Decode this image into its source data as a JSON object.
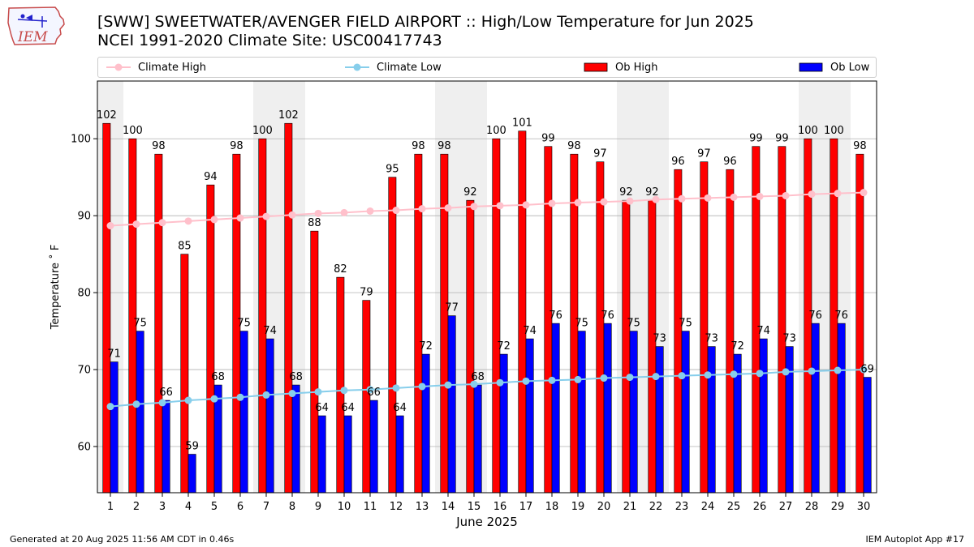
{
  "header": {
    "title_line1": "[SWW] SWEETWATER/AVENGER FIELD AIRPORT :: High/Low Temperature for Jun 2025",
    "title_line2": "NCEI 1991-2020 Climate Site: USC00417743",
    "logo_text": "IEM"
  },
  "legend": {
    "items": [
      {
        "label": "Climate High",
        "color": "#ffc0cb",
        "kind": "line"
      },
      {
        "label": "Climate Low",
        "color": "#87ceeb",
        "kind": "line"
      },
      {
        "label": "Ob High",
        "color": "#ff0000",
        "kind": "bar"
      },
      {
        "label": "Ob Low",
        "color": "#0000ff",
        "kind": "bar"
      }
    ],
    "placement": "top, above plot, horizontal"
  },
  "footer": {
    "left": "Generated at 20 Aug 2025 11:56 AM CDT in 0.46s",
    "right": "IEM Autoplot App #17"
  },
  "chart_data": {
    "type": "bar",
    "xlabel": "June 2025",
    "ylabel": "Temperature ˚ F",
    "ylim": [
      54,
      107.5
    ],
    "yticks": [
      60,
      70,
      80,
      90,
      100
    ],
    "grid": "horizontal",
    "x": [
      1,
      2,
      3,
      4,
      5,
      6,
      7,
      8,
      9,
      10,
      11,
      12,
      13,
      14,
      15,
      16,
      17,
      18,
      19,
      20,
      21,
      22,
      23,
      24,
      25,
      26,
      27,
      28,
      29,
      30
    ],
    "weekend_shading_days": [
      1,
      7,
      8,
      14,
      15,
      21,
      22,
      28,
      29
    ],
    "series": [
      {
        "name": "Ob High",
        "type": "bar",
        "color": "#ff0000",
        "values": [
          102,
          100,
          98,
          85,
          94,
          98,
          100,
          102,
          88,
          82,
          79,
          95,
          98,
          98,
          92,
          100,
          101,
          99,
          98,
          97,
          92,
          92,
          96,
          97,
          96,
          99,
          99,
          100,
          100,
          98
        ]
      },
      {
        "name": "Ob Low",
        "type": "bar",
        "color": "#0000ff",
        "values": [
          71,
          75,
          66,
          59,
          68,
          75,
          74,
          68,
          64,
          64,
          66,
          64,
          72,
          77,
          68,
          72,
          74,
          76,
          75,
          76,
          75,
          73,
          75,
          73,
          72,
          74,
          73,
          76,
          76,
          69
        ]
      },
      {
        "name": "Climate High",
        "type": "line",
        "color": "#ffc0cb",
        "values": [
          88.7,
          88.9,
          89.1,
          89.3,
          89.5,
          89.7,
          89.9,
          90.1,
          90.3,
          90.4,
          90.6,
          90.7,
          90.9,
          91.0,
          91.2,
          91.3,
          91.4,
          91.6,
          91.7,
          91.8,
          91.9,
          92.1,
          92.2,
          92.3,
          92.4,
          92.5,
          92.6,
          92.8,
          92.9,
          93.0
        ]
      },
      {
        "name": "Climate Low",
        "type": "line",
        "color": "#87ceeb",
        "values": [
          65.2,
          65.5,
          65.7,
          66.0,
          66.2,
          66.4,
          66.7,
          66.9,
          67.1,
          67.3,
          67.4,
          67.6,
          67.8,
          68.0,
          68.1,
          68.3,
          68.5,
          68.6,
          68.7,
          68.9,
          69.0,
          69.1,
          69.2,
          69.3,
          69.4,
          69.5,
          69.7,
          69.8,
          69.9,
          70.0
        ]
      }
    ],
    "bar_labels": {
      "high": [
        102,
        100,
        98,
        85,
        94,
        98,
        100,
        102,
        88,
        82,
        79,
        95,
        98,
        98,
        92,
        100,
        101,
        99,
        98,
        97,
        92,
        92,
        96,
        97,
        96,
        99,
        99,
        100,
        100,
        98
      ],
      "low": [
        71,
        75,
        66,
        59,
        68,
        75,
        74,
        68,
        64,
        64,
        66,
        64,
        72,
        77,
        68,
        72,
        74,
        76,
        75,
        76,
        75,
        73,
        75,
        73,
        72,
        74,
        73,
        76,
        76,
        69
      ]
    }
  }
}
